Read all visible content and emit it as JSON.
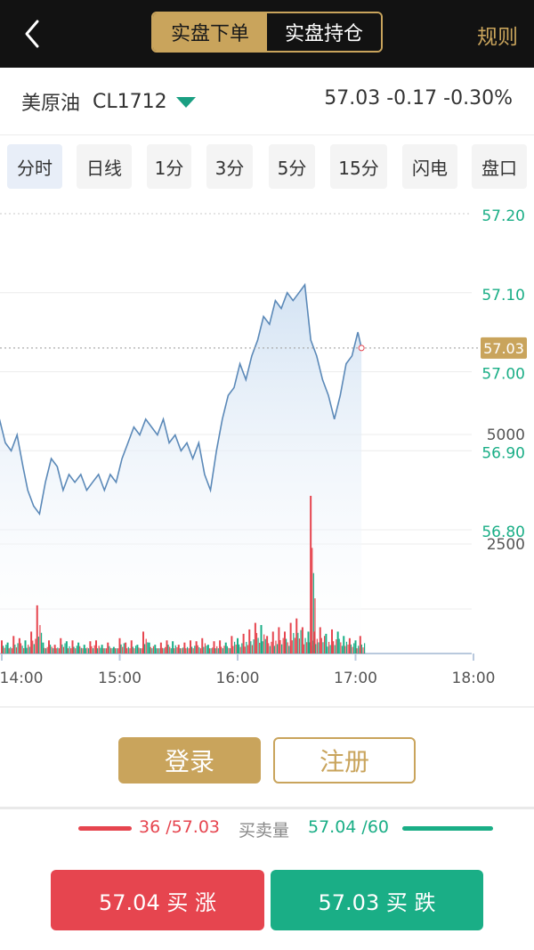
{
  "topbar": {
    "back_icon": "chevron-left-icon",
    "segments": [
      "实盘下单",
      "实盘持仓"
    ],
    "active_segment": 0,
    "rules_label": "规则"
  },
  "instrument": {
    "name": "美原油",
    "code": "CL1712",
    "price": "57.03",
    "change": "-0.17",
    "change_pct": "-0.30%",
    "dropdown_icon": "triangle-down-icon",
    "dropdown_color": "#1a9f82"
  },
  "periods": {
    "items": [
      "分时",
      "日线",
      "1分",
      "3分",
      "5分",
      "15分",
      "闪电",
      "盘口"
    ],
    "active": 0
  },
  "chart_data": {
    "type": "line",
    "price_ticks": [
      "57.20",
      "57.10",
      "57.00",
      "56.90",
      "56.80"
    ],
    "price_ylim": [
      56.78,
      57.22
    ],
    "volume_ticks": [
      "5000",
      "2500"
    ],
    "volume_ylim": [
      0,
      5200
    ],
    "last_price_label": "57.03",
    "last_price": 57.03,
    "x_ticks": [
      "14:00",
      "15:00",
      "16:00",
      "17:00",
      "18:00"
    ],
    "x_hours": [
      14,
      15,
      16,
      17,
      18
    ],
    "series": [
      {
        "x": [
          13.98,
          14.03,
          14.08,
          14.13,
          14.18,
          14.22,
          14.27,
          14.32,
          14.37,
          14.42,
          14.47,
          14.52,
          14.57,
          14.62,
          14.67,
          14.72,
          14.77,
          14.82,
          14.87,
          14.92,
          14.97,
          15.02,
          15.07,
          15.12,
          15.17,
          15.22,
          15.27,
          15.32,
          15.37,
          15.42,
          15.47,
          15.52,
          15.57,
          15.62,
          15.67,
          15.72,
          15.77,
          15.82,
          15.87,
          15.92,
          15.97,
          16.02,
          16.07,
          16.12,
          16.17,
          16.22,
          16.27,
          16.32,
          16.37,
          16.42,
          16.47,
          16.52,
          16.57,
          16.62,
          16.67,
          16.72,
          16.77,
          16.82,
          16.87,
          16.92,
          16.97,
          17.02,
          17.05
        ],
        "values": [
          56.94,
          56.91,
          56.9,
          56.92,
          56.88,
          56.85,
          56.83,
          56.82,
          56.86,
          56.89,
          56.88,
          56.85,
          56.87,
          56.86,
          56.87,
          56.85,
          56.86,
          56.87,
          56.85,
          56.87,
          56.86,
          56.89,
          56.91,
          56.93,
          56.92,
          56.94,
          56.93,
          56.92,
          56.94,
          56.91,
          56.92,
          56.9,
          56.91,
          56.89,
          56.91,
          56.87,
          56.85,
          56.9,
          56.94,
          56.97,
          56.98,
          57.01,
          56.99,
          57.02,
          57.04,
          57.07,
          57.06,
          57.09,
          57.08,
          57.1,
          57.09,
          57.1,
          57.11,
          57.04,
          57.02,
          56.99,
          56.97,
          56.94,
          56.97,
          57.01,
          57.02,
          57.05,
          57.03
        ],
        "line_color": "#5b89b8"
      }
    ],
    "volume": {
      "x": [
        14.0,
        14.05,
        14.1,
        14.15,
        14.2,
        14.25,
        14.3,
        14.35,
        14.4,
        14.45,
        14.5,
        14.55,
        14.6,
        14.65,
        14.7,
        14.75,
        14.8,
        14.85,
        14.9,
        14.95,
        15.0,
        15.05,
        15.1,
        15.15,
        15.2,
        15.25,
        15.3,
        15.35,
        15.4,
        15.45,
        15.5,
        15.55,
        15.6,
        15.65,
        15.7,
        15.75,
        15.8,
        15.85,
        15.9,
        15.95,
        16.0,
        16.05,
        16.1,
        16.15,
        16.2,
        16.25,
        16.3,
        16.35,
        16.4,
        16.45,
        16.5,
        16.55,
        16.6,
        16.62,
        16.65,
        16.7,
        16.75,
        16.8,
        16.85,
        16.9,
        16.95,
        17.0,
        17.04
      ],
      "values": [
        300,
        250,
        400,
        350,
        300,
        500,
        1100,
        250,
        300,
        200,
        350,
        280,
        300,
        250,
        200,
        280,
        300,
        200,
        250,
        150,
        350,
        250,
        300,
        200,
        500,
        250,
        200,
        250,
        300,
        280,
        200,
        250,
        300,
        280,
        350,
        200,
        280,
        300,
        250,
        400,
        350,
        450,
        550,
        700,
        650,
        400,
        500,
        600,
        500,
        700,
        800,
        600,
        500,
        3600,
        500,
        600,
        450,
        550,
        500,
        400,
        350,
        300,
        400
      ],
      "up_color": "#e6454f",
      "down_color": "#1aae86"
    },
    "grid": true
  },
  "auth": {
    "login_label": "登录",
    "register_label": "注册"
  },
  "book": {
    "bid": "36 /57.03",
    "mid": "买卖量",
    "ask": "57.04 /60"
  },
  "trade": {
    "buy_up_label": "57.04 买 涨",
    "buy_down_label": "57.03 买 跌"
  },
  "colors": {
    "gold": "#c9a45c",
    "red": "#e6454f",
    "green": "#1aae86",
    "dark": "#121212"
  }
}
